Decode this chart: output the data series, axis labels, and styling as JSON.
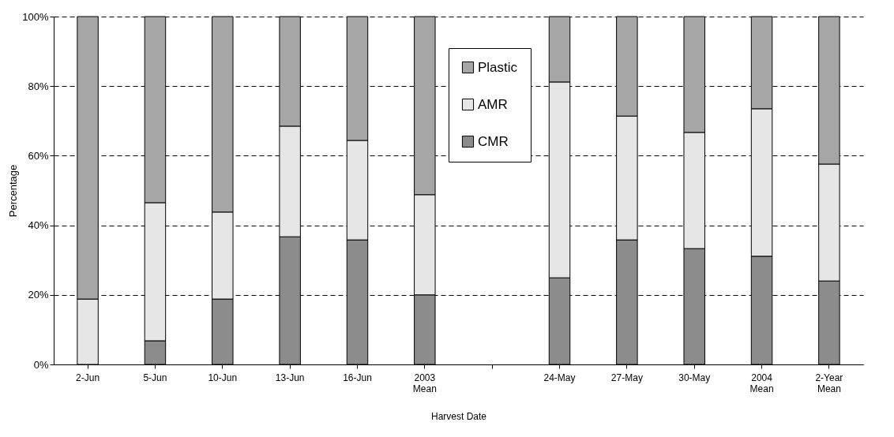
{
  "chart_data": {
    "type": "bar",
    "stacked": true,
    "xlabel": "Harvest Date",
    "ylabel": "Percentage",
    "categories": [
      "2-Jun",
      "5-Jun",
      "10-Jun",
      "13-Jun",
      "16-Jun",
      "2003 Mean",
      null,
      "24-May",
      "27-May",
      "30-May",
      "2004 Mean",
      "2-Year Mean"
    ],
    "series": [
      {
        "name": "CMR",
        "color": "#8c8c8c",
        "values": [
          0,
          6.8,
          18.8,
          36.7,
          35.8,
          20.0,
          null,
          24.9,
          35.8,
          33.3,
          31.1,
          24.0
        ]
      },
      {
        "name": "AMR",
        "color": "#e6e6e6",
        "values": [
          18.8,
          39.7,
          25.0,
          31.8,
          28.6,
          28.8,
          null,
          56.3,
          35.6,
          33.4,
          42.4,
          33.6
        ]
      },
      {
        "name": "Plastic",
        "color": "#a6a6a6",
        "values": [
          81.2,
          53.5,
          56.2,
          31.5,
          35.6,
          51.2,
          null,
          18.8,
          28.6,
          33.3,
          26.5,
          42.4
        ]
      }
    ],
    "ylim": [
      0,
      100
    ],
    "yticks": [
      {
        "value": 0,
        "label": "0%"
      },
      {
        "value": 20,
        "label": "20%"
      },
      {
        "value": 40,
        "label": "40%"
      },
      {
        "value": 60,
        "label": "60%"
      },
      {
        "value": 80,
        "label": "80%"
      },
      {
        "value": 100,
        "label": "100%"
      }
    ],
    "grid": "y",
    "legend": "top"
  }
}
